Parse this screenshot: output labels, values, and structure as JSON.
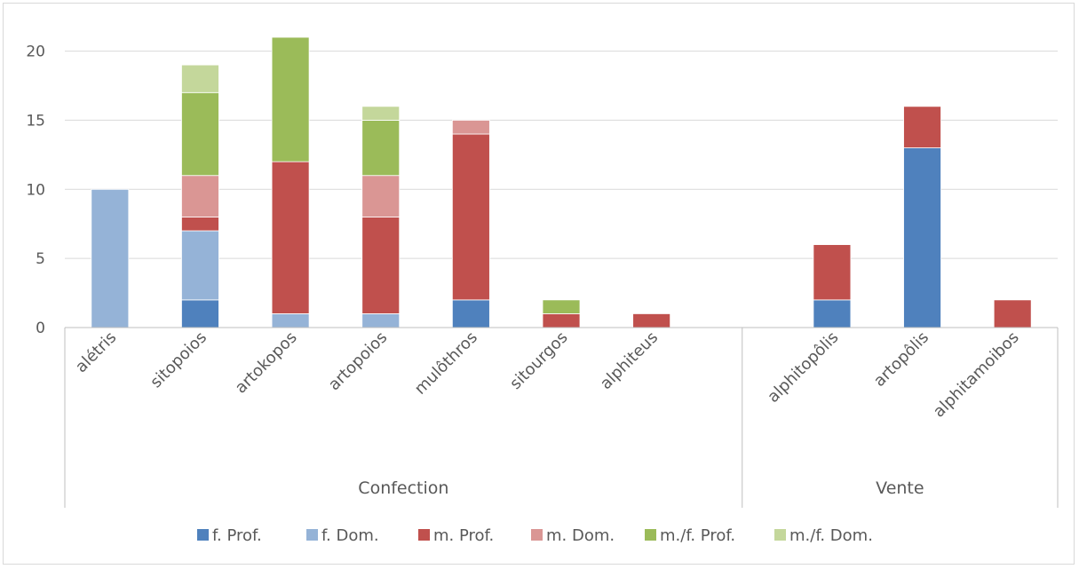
{
  "chart_data": {
    "type": "bar",
    "stacked": true,
    "title": "",
    "xlabel": "",
    "ylabel": "",
    "ylim": [
      0,
      21
    ],
    "yticks": [
      0,
      5,
      10,
      15,
      20
    ],
    "grid": true,
    "legend_position": "bottom",
    "groups": [
      {
        "name": "Confection",
        "categories": [
          "alétris",
          "sitopoios",
          "artokopos",
          "artopoios",
          "mulôthros",
          "sitourgos",
          "alphiteus"
        ]
      },
      {
        "name": "Vente",
        "categories": [
          "alphitopôlis",
          "artopôlis",
          "alphitamoibos"
        ]
      }
    ],
    "categories": [
      "alétris",
      "sitopoios",
      "artokopos",
      "artopoios",
      "mulôthros",
      "sitourgos",
      "alphiteus",
      "alphitopôlis",
      "artopôlis",
      "alphitamoibos"
    ],
    "series": [
      {
        "name": "f. Prof.",
        "color": "#4f81bd",
        "values": [
          0,
          2,
          0,
          0,
          2,
          0,
          0,
          2,
          13,
          0
        ]
      },
      {
        "name": "f. Dom.",
        "color": "#95b3d7",
        "values": [
          10,
          5,
          1,
          1,
          0,
          0,
          0,
          0,
          0,
          0
        ]
      },
      {
        "name": "m. Prof.",
        "color": "#c0504d",
        "values": [
          0,
          1,
          11,
          7,
          12,
          1,
          1,
          4,
          3,
          2
        ]
      },
      {
        "name": "m. Dom.",
        "color": "#da9694",
        "values": [
          0,
          3,
          0,
          3,
          1,
          0,
          0,
          0,
          0,
          0
        ]
      },
      {
        "name": "m./f. Prof.",
        "color": "#9bbb59",
        "values": [
          0,
          6,
          9,
          4,
          0,
          1,
          0,
          0,
          0,
          0
        ]
      },
      {
        "name": "m./f. Dom.",
        "color": "#c4d79b",
        "values": [
          0,
          2,
          0,
          1,
          0,
          0,
          0,
          0,
          0,
          0
        ]
      }
    ]
  }
}
